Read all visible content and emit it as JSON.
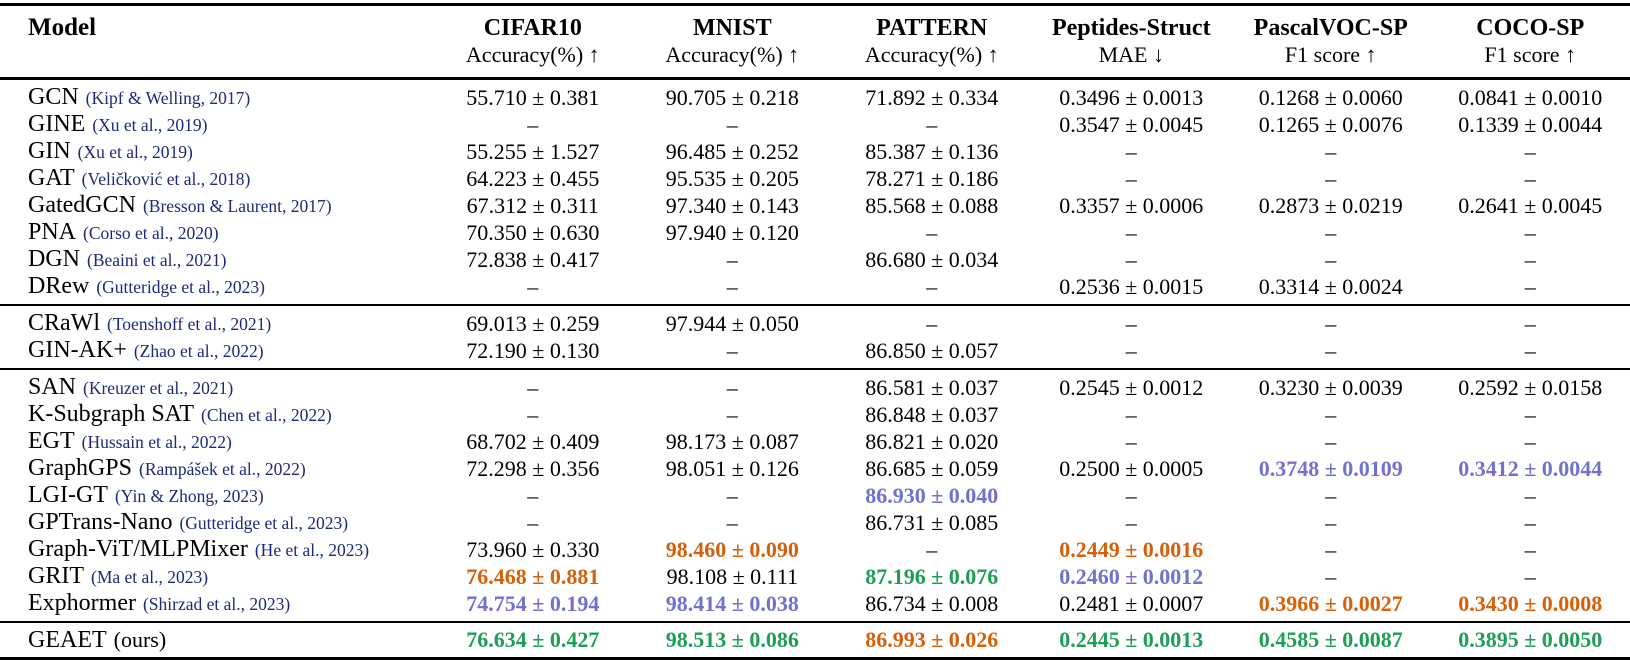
{
  "table": {
    "colors": {
      "first": "#1e9e55",
      "second": "#d6600a",
      "third": "#7171d0",
      "citation": "#1b2a7a"
    },
    "missing_symbol": "–",
    "header": {
      "model_label": "Model",
      "columns": [
        {
          "name": "CIFAR10",
          "metric": "Accuracy(%) ↑"
        },
        {
          "name": "MNIST",
          "metric": "Accuracy(%) ↑"
        },
        {
          "name": "PATTERN",
          "metric": "Accuracy(%) ↑"
        },
        {
          "name": "Peptides-Struct",
          "metric": "MAE ↓"
        },
        {
          "name": "PascalVOC-SP",
          "metric": "F1 score ↑"
        },
        {
          "name": "COCO-SP",
          "metric": "F1 score ↑"
        }
      ]
    },
    "groups": [
      {
        "rows": [
          {
            "model": "GCN",
            "citation": "(Kipf & Welling, 2017)",
            "values": [
              {
                "text": "55.710 ± 0.381"
              },
              {
                "text": "90.705 ± 0.218"
              },
              {
                "text": "71.892 ± 0.334"
              },
              {
                "text": "0.3496 ± 0.0013"
              },
              {
                "text": "0.1268 ± 0.0060"
              },
              {
                "text": "0.0841 ± 0.0010"
              }
            ]
          },
          {
            "model": "GINE",
            "citation": "(Xu et al., 2019)",
            "values": [
              {
                "text": "–"
              },
              {
                "text": "–"
              },
              {
                "text": "–"
              },
              {
                "text": "0.3547 ± 0.0045"
              },
              {
                "text": "0.1265 ± 0.0076"
              },
              {
                "text": "0.1339 ± 0.0044"
              }
            ]
          },
          {
            "model": "GIN",
            "citation": "(Xu et al., 2019)",
            "values": [
              {
                "text": "55.255 ± 1.527"
              },
              {
                "text": "96.485 ± 0.252"
              },
              {
                "text": "85.387 ± 0.136"
              },
              {
                "text": "–"
              },
              {
                "text": "–"
              },
              {
                "text": "–"
              }
            ]
          },
          {
            "model": "GAT",
            "citation": "(Veličković et al., 2018)",
            "values": [
              {
                "text": "64.223 ± 0.455"
              },
              {
                "text": "95.535 ± 0.205"
              },
              {
                "text": "78.271 ± 0.186"
              },
              {
                "text": "–"
              },
              {
                "text": "–"
              },
              {
                "text": "–"
              }
            ]
          },
          {
            "model": "GatedGCN",
            "citation": "(Bresson & Laurent, 2017)",
            "values": [
              {
                "text": "67.312 ± 0.311"
              },
              {
                "text": "97.340 ± 0.143"
              },
              {
                "text": "85.568 ± 0.088"
              },
              {
                "text": "0.3357 ± 0.0006"
              },
              {
                "text": "0.2873 ± 0.0219"
              },
              {
                "text": "0.2641 ± 0.0045"
              }
            ]
          },
          {
            "model": "PNA",
            "citation": "(Corso et al., 2020)",
            "values": [
              {
                "text": "70.350 ± 0.630"
              },
              {
                "text": "97.940 ± 0.120"
              },
              {
                "text": "–"
              },
              {
                "text": "–"
              },
              {
                "text": "–"
              },
              {
                "text": "–"
              }
            ]
          },
          {
            "model": "DGN",
            "citation": "(Beaini et al., 2021)",
            "values": [
              {
                "text": "72.838 ± 0.417"
              },
              {
                "text": "–"
              },
              {
                "text": "86.680 ± 0.034"
              },
              {
                "text": "–"
              },
              {
                "text": "–"
              },
              {
                "text": "–"
              }
            ]
          },
          {
            "model": "DRew",
            "citation": "(Gutteridge et al., 2023)",
            "values": [
              {
                "text": "–"
              },
              {
                "text": "–"
              },
              {
                "text": "–"
              },
              {
                "text": "0.2536 ± 0.0015"
              },
              {
                "text": "0.3314 ± 0.0024"
              },
              {
                "text": "–"
              }
            ]
          }
        ]
      },
      {
        "rows": [
          {
            "model": "CRaWl",
            "citation": "(Toenshoff et al., 2021)",
            "values": [
              {
                "text": "69.013 ± 0.259"
              },
              {
                "text": "97.944 ± 0.050"
              },
              {
                "text": "–"
              },
              {
                "text": "–"
              },
              {
                "text": "–"
              },
              {
                "text": "–"
              }
            ]
          },
          {
            "model": "GIN-AK+",
            "citation": "(Zhao et al., 2022)",
            "values": [
              {
                "text": "72.190 ± 0.130"
              },
              {
                "text": "–"
              },
              {
                "text": "86.850 ± 0.057"
              },
              {
                "text": "–"
              },
              {
                "text": "–"
              },
              {
                "text": "–"
              }
            ]
          }
        ]
      },
      {
        "rows": [
          {
            "model": "SAN",
            "citation": "(Kreuzer et al., 2021)",
            "values": [
              {
                "text": "–"
              },
              {
                "text": "–"
              },
              {
                "text": "86.581 ± 0.037"
              },
              {
                "text": "0.2545 ± 0.0012"
              },
              {
                "text": "0.3230 ± 0.0039"
              },
              {
                "text": "0.2592 ± 0.0158"
              }
            ]
          },
          {
            "model": "K-Subgraph SAT",
            "citation": "(Chen et al., 2022)",
            "values": [
              {
                "text": "–"
              },
              {
                "text": "–"
              },
              {
                "text": "86.848 ± 0.037"
              },
              {
                "text": "–"
              },
              {
                "text": "–"
              },
              {
                "text": "–"
              }
            ]
          },
          {
            "model": "EGT",
            "citation": "(Hussain et al., 2022)",
            "values": [
              {
                "text": "68.702 ± 0.409"
              },
              {
                "text": "98.173 ± 0.087"
              },
              {
                "text": "86.821 ± 0.020"
              },
              {
                "text": "–"
              },
              {
                "text": "–"
              },
              {
                "text": "–"
              }
            ]
          },
          {
            "model": "GraphGPS",
            "citation": "(Rampášek et al., 2022)",
            "values": [
              {
                "text": "72.298 ± 0.356"
              },
              {
                "text": "98.051 ± 0.126"
              },
              {
                "text": "86.685 ± 0.059"
              },
              {
                "text": "0.2500 ± 0.0005"
              },
              {
                "text": "0.3748 ± 0.0109",
                "hl": "third"
              },
              {
                "text": "0.3412 ± 0.0044",
                "hl": "third"
              }
            ]
          },
          {
            "model": "LGI-GT",
            "citation": "(Yin & Zhong, 2023)",
            "values": [
              {
                "text": "–"
              },
              {
                "text": "–"
              },
              {
                "text": "86.930 ± 0.040",
                "hl": "third"
              },
              {
                "text": "–"
              },
              {
                "text": "–"
              },
              {
                "text": "–"
              }
            ]
          },
          {
            "model": "GPTrans-Nano",
            "citation": "(Gutteridge et al., 2023)",
            "values": [
              {
                "text": "–"
              },
              {
                "text": "–"
              },
              {
                "text": "86.731 ± 0.085"
              },
              {
                "text": "–"
              },
              {
                "text": "–"
              },
              {
                "text": "–"
              }
            ]
          },
          {
            "model": "Graph-ViT/MLPMixer",
            "citation": "(He et al., 2023)",
            "values": [
              {
                "text": "73.960 ± 0.330"
              },
              {
                "text": "98.460 ± 0.090",
                "hl": "second"
              },
              {
                "text": "–"
              },
              {
                "text": "0.2449 ± 0.0016",
                "hl": "second"
              },
              {
                "text": "–"
              },
              {
                "text": "–"
              }
            ]
          },
          {
            "model": "GRIT",
            "citation": "(Ma et al., 2023)",
            "values": [
              {
                "text": "76.468 ± 0.881",
                "hl": "second"
              },
              {
                "text": "98.108 ± 0.111"
              },
              {
                "text": "87.196 ± 0.076",
                "hl": "first"
              },
              {
                "text": "0.2460 ± 0.0012",
                "hl": "third"
              },
              {
                "text": "–"
              },
              {
                "text": "–"
              }
            ]
          },
          {
            "model": "Exphormer",
            "citation": "(Shirzad et al., 2023)",
            "values": [
              {
                "text": "74.754 ± 0.194",
                "hl": "third"
              },
              {
                "text": "98.414 ± 0.038",
                "hl": "third"
              },
              {
                "text": "86.734 ± 0.008"
              },
              {
                "text": "0.2481 ± 0.0007"
              },
              {
                "text": "0.3966 ± 0.0027",
                "hl": "second"
              },
              {
                "text": "0.3430 ± 0.0008",
                "hl": "second"
              }
            ]
          }
        ]
      },
      {
        "final": true,
        "rows": [
          {
            "model": "GEAET",
            "citation": "(ours)",
            "citation_plain": true,
            "values": [
              {
                "text": "76.634 ± 0.427",
                "hl": "first"
              },
              {
                "text": "98.513 ± 0.086",
                "hl": "first"
              },
              {
                "text": "86.993 ± 0.026",
                "hl": "second"
              },
              {
                "text": "0.2445 ± 0.0013",
                "hl": "first"
              },
              {
                "text": "0.4585 ± 0.0087",
                "hl": "first"
              },
              {
                "text": "0.3895 ± 0.0050",
                "hl": "first"
              }
            ]
          }
        ]
      }
    ]
  }
}
